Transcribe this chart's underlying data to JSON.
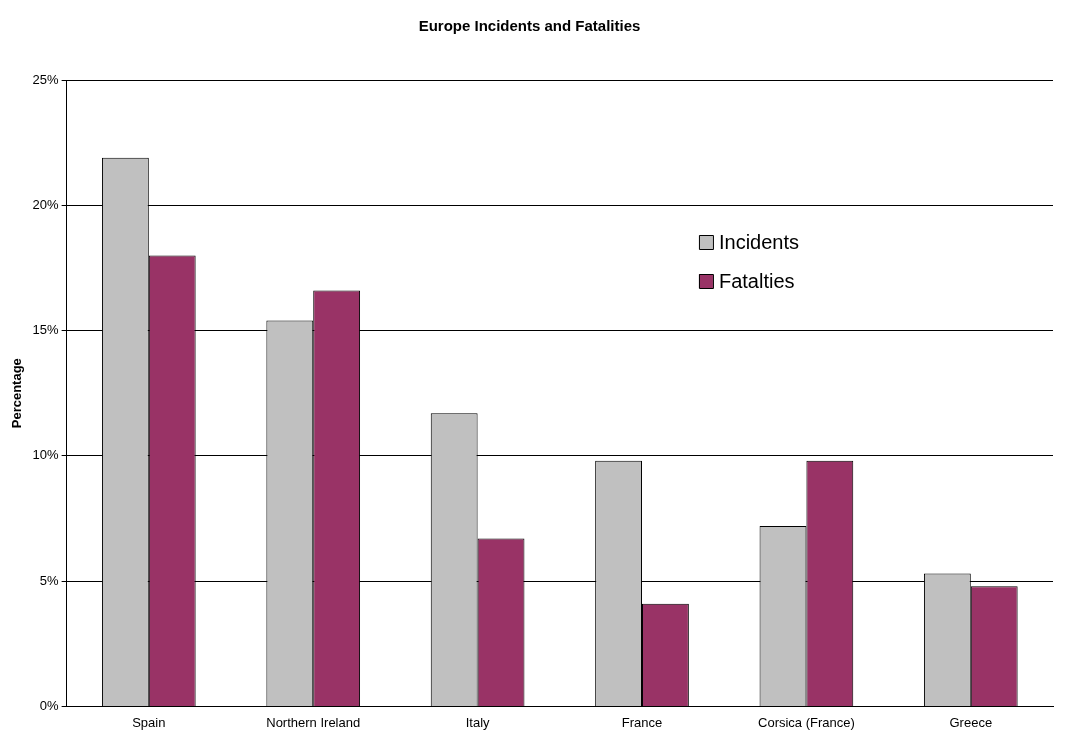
{
  "chart_data": {
    "type": "bar",
    "title": "Europe Incidents and Fatalities",
    "ylabel": "Percentage",
    "categories": [
      "Spain",
      "Northern Ireland",
      "Italy",
      "France",
      "Corsica (France)",
      "Greece"
    ],
    "series": [
      {
        "name": "Incidents",
        "color": "#c0c0c0",
        "values": [
          21.9,
          15.4,
          11.7,
          9.8,
          7.2,
          5.3
        ]
      },
      {
        "name": "Fatalties",
        "color": "#993366",
        "values": [
          18.0,
          16.6,
          6.7,
          4.1,
          9.8,
          4.8
        ]
      }
    ],
    "ylim": [
      0,
      25
    ],
    "yticks": [
      {
        "value": 0,
        "label": "0%"
      },
      {
        "value": 5,
        "label": "5%"
      },
      {
        "value": 10,
        "label": "10%"
      },
      {
        "value": 15,
        "label": "15%"
      },
      {
        "value": 20,
        "label": "20%"
      },
      {
        "value": 25,
        "label": "25%"
      }
    ],
    "grid": "y",
    "legend": "top right"
  }
}
